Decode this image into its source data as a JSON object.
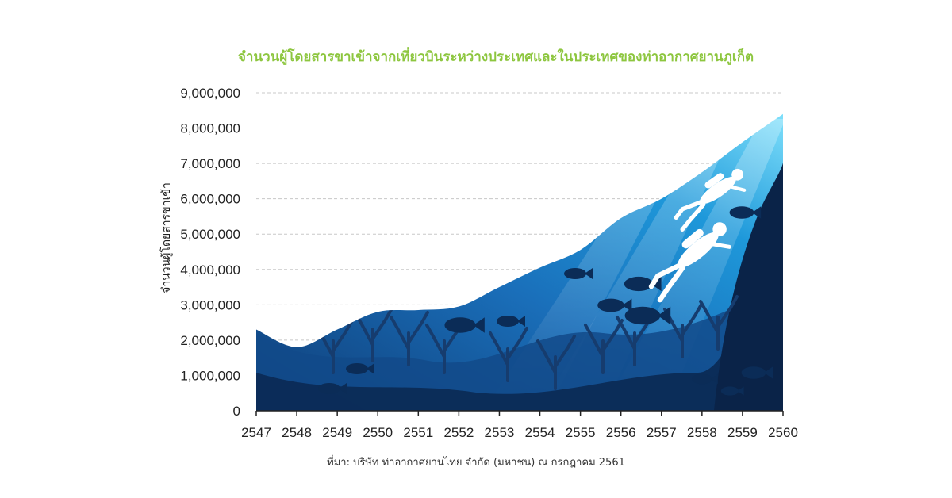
{
  "chart_data": {
    "type": "area",
    "title": "จำนวนผู้โดยสารขาเข้าจากเที่ยวบินระหว่างประเทศและในประเทศของท่าอากาศยานภูเก็ต",
    "ylabel": "จำนวนผู้โดยสารขาเข้า",
    "xlabel": "",
    "x": [
      "2547",
      "2548",
      "2549",
      "2550",
      "2551",
      "2552",
      "2553",
      "2554",
      "2555",
      "2556",
      "2557",
      "2558",
      "2559",
      "2560"
    ],
    "values": [
      2300000,
      1800000,
      2300000,
      2800000,
      2850000,
      2950000,
      3500000,
      4050000,
      4550000,
      5450000,
      6000000,
      6750000,
      7600000,
      8400000
    ],
    "ylim": [
      0,
      9000000
    ],
    "yticks": [
      "0",
      "1,000,000",
      "2,000,000",
      "3,000,000",
      "4,000,000",
      "5,000,000",
      "6,000,000",
      "7,000,000",
      "8,000,000",
      "9,000,000"
    ],
    "grid": true,
    "source": "ที่มา:  บริษัท ท่าอากาศยานไทย จำกัด (มหาชน) ณ กรกฎาคม 2561"
  },
  "colors": {
    "title": "#8dc63f",
    "grid": "#c8c8c8",
    "axis": "#222222",
    "water_top": "#5fd0f5",
    "water_mid": "#1a78c2",
    "water_deep": "#0f3d77",
    "seabed": "#0b2a55",
    "silhouette": "#163c6e",
    "diver": "#ffffff"
  },
  "decor_icons": [
    "diver-icon",
    "fish-icon",
    "coral-icon"
  ]
}
